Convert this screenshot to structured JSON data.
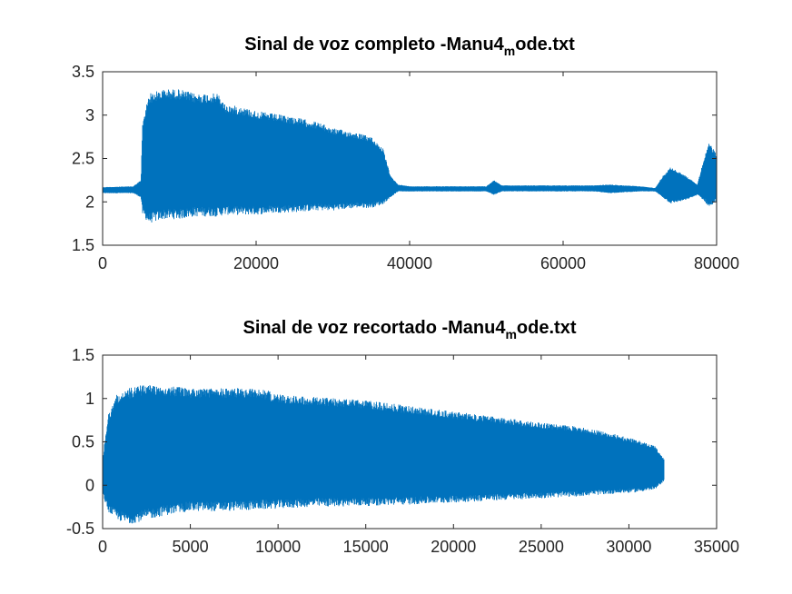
{
  "colors": {
    "series": "#0072BD",
    "axis": "#262626",
    "background": "#ffffff"
  },
  "chart_data": [
    {
      "type": "line",
      "title": {
        "main": "Sinal de voz completo -Manu4",
        "subscript": "m",
        "suffix": "ode.txt"
      },
      "xlim": [
        0,
        80000
      ],
      "ylim": [
        1.5,
        3.5
      ],
      "xticks": [
        0,
        20000,
        40000,
        60000,
        80000
      ],
      "yticks": [
        1.5,
        2,
        2.5,
        3,
        3.5
      ],
      "xtick_labels": [
        "0",
        "20000",
        "40000",
        "60000",
        "80000"
      ],
      "ytick_labels": [
        "1.5",
        "2",
        "2.5",
        "3",
        "3.5"
      ],
      "grid": false,
      "series": [
        {
          "envelope_x": [
            0,
            4000,
            5000,
            5200,
            6000,
            8000,
            10000,
            12000,
            15000,
            16000,
            18000,
            20000,
            22000,
            25000,
            28000,
            30000,
            33000,
            35000,
            36500,
            37500,
            38500,
            40000,
            50000,
            51000,
            52000,
            60000,
            64000,
            66000,
            70000,
            72000,
            73000,
            74000,
            75000,
            76000,
            77500,
            78500,
            79000,
            79500,
            80000
          ],
          "upper": [
            2.17,
            2.18,
            2.25,
            2.9,
            3.25,
            3.3,
            3.3,
            3.25,
            3.25,
            3.12,
            3.1,
            3.05,
            3.02,
            2.98,
            2.92,
            2.85,
            2.8,
            2.75,
            2.62,
            2.3,
            2.2,
            2.18,
            2.18,
            2.25,
            2.19,
            2.19,
            2.19,
            2.2,
            2.18,
            2.16,
            2.3,
            2.4,
            2.35,
            2.3,
            2.2,
            2.55,
            2.68,
            2.62,
            2.55
          ],
          "lower": [
            2.1,
            2.1,
            2.05,
            1.85,
            1.75,
            1.8,
            1.8,
            1.83,
            1.83,
            1.85,
            1.85,
            1.85,
            1.87,
            1.88,
            1.9,
            1.9,
            1.93,
            1.93,
            1.97,
            2.05,
            2.12,
            2.12,
            2.12,
            2.08,
            2.12,
            2.12,
            2.12,
            2.1,
            2.12,
            2.12,
            2.05,
            1.98,
            2.0,
            2.02,
            2.08,
            2.0,
            1.93,
            1.97,
            2.0
          ]
        }
      ]
    },
    {
      "type": "line",
      "title": {
        "main": "Sinal de voz recortado -Manu4",
        "subscript": "m",
        "suffix": "ode.txt"
      },
      "xlim": [
        0,
        35000
      ],
      "ylim": [
        -0.5,
        1.5
      ],
      "xticks": [
        0,
        5000,
        10000,
        15000,
        20000,
        25000,
        30000,
        35000
      ],
      "yticks": [
        -0.5,
        0,
        0.5,
        1,
        1.5
      ],
      "xtick_labels": [
        "0",
        "5000",
        "10000",
        "15000",
        "20000",
        "25000",
        "30000",
        "35000"
      ],
      "ytick_labels": [
        "-0.5",
        "0",
        "0.5",
        "1",
        "1.5"
      ],
      "grid": false,
      "series": [
        {
          "envelope_x": [
            0,
            300,
            800,
            1500,
            2500,
            3500,
            5000,
            7000,
            9000,
            10000,
            12000,
            15000,
            18000,
            20000,
            22000,
            25000,
            27000,
            29000,
            30500,
            31500,
            32000
          ],
          "upper": [
            0.3,
            0.8,
            1.05,
            1.12,
            1.17,
            1.15,
            1.12,
            1.12,
            1.12,
            1.05,
            1.02,
            0.98,
            0.9,
            0.85,
            0.8,
            0.72,
            0.68,
            0.6,
            0.52,
            0.45,
            0.3
          ],
          "lower": [
            -0.1,
            -0.3,
            -0.4,
            -0.45,
            -0.4,
            -0.35,
            -0.3,
            -0.3,
            -0.28,
            -0.27,
            -0.25,
            -0.24,
            -0.22,
            -0.2,
            -0.18,
            -0.15,
            -0.13,
            -0.1,
            -0.08,
            -0.05,
            0.05
          ]
        }
      ]
    }
  ]
}
